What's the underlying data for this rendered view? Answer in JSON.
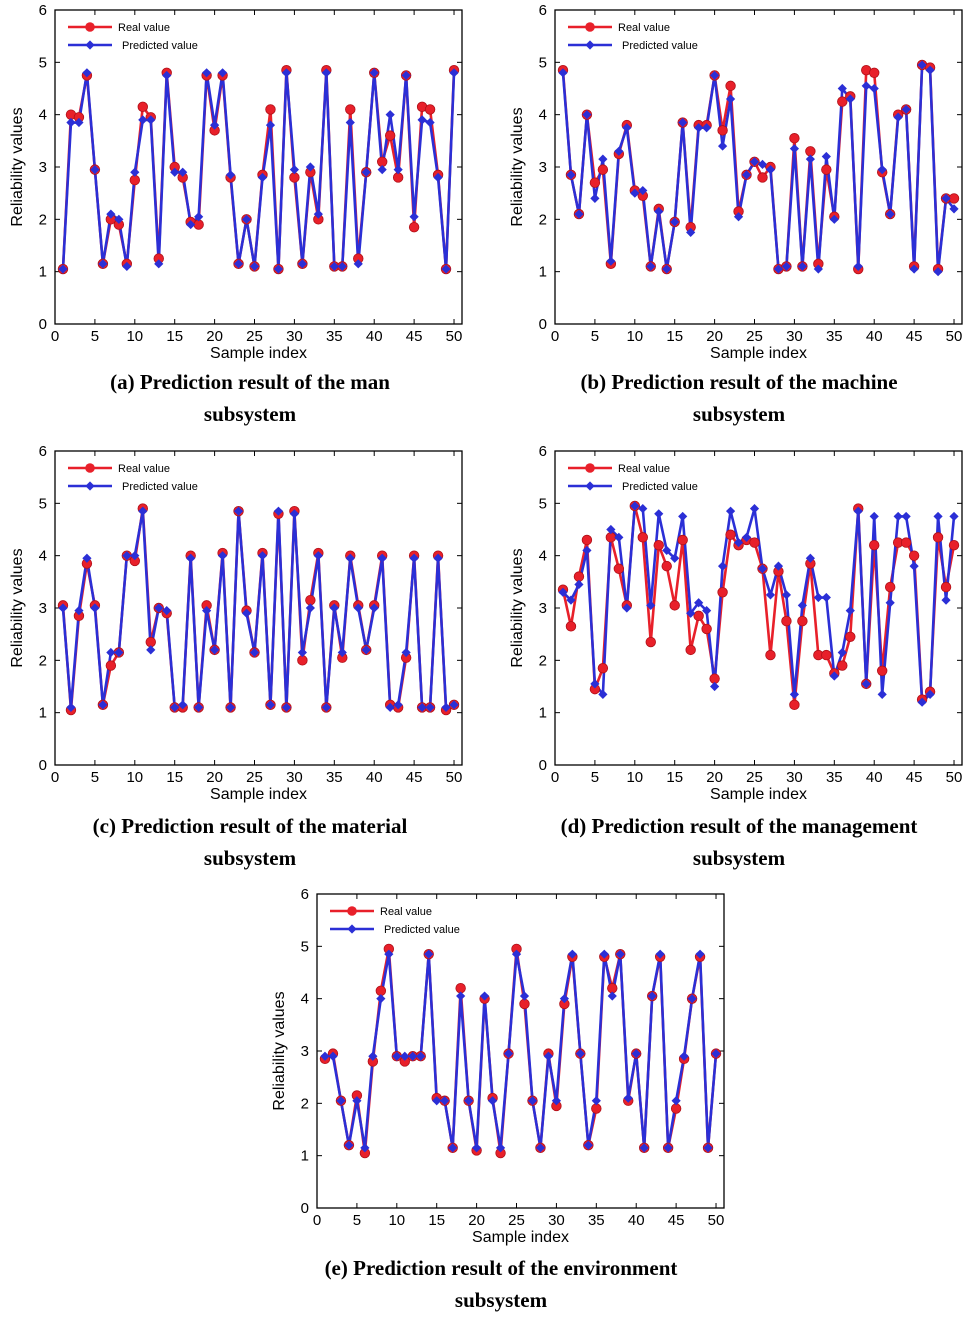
{
  "chart_data": [
    {
      "type": "line",
      "caption_line1": "(a) Prediction result of the man",
      "caption_line2": "subsystem",
      "xlabel": "Sample index",
      "ylabel": "Reliability values",
      "xlim": [
        0,
        51
      ],
      "ylim": [
        0,
        6
      ],
      "xticks": [
        0,
        5,
        10,
        15,
        20,
        25,
        30,
        35,
        40,
        45,
        50
      ],
      "yticks": [
        0,
        1,
        2,
        3,
        4,
        5,
        6
      ],
      "legend_position": "top-left",
      "x": [
        1,
        2,
        3,
        4,
        5,
        6,
        7,
        8,
        9,
        10,
        11,
        12,
        13,
        14,
        15,
        16,
        17,
        18,
        19,
        20,
        21,
        22,
        23,
        24,
        25,
        26,
        27,
        28,
        29,
        30,
        31,
        32,
        33,
        34,
        35,
        36,
        37,
        38,
        39,
        40,
        41,
        42,
        43,
        44,
        45,
        46,
        47,
        48,
        49,
        50
      ],
      "series": [
        {
          "name": "Real value",
          "color": "#e8202a",
          "marker": "circle",
          "values": [
            1.05,
            4.0,
            3.95,
            4.75,
            2.95,
            1.15,
            2.0,
            1.9,
            1.15,
            2.75,
            4.15,
            3.95,
            1.25,
            4.8,
            3.0,
            2.8,
            1.95,
            1.9,
            4.75,
            3.7,
            4.75,
            2.8,
            1.15,
            2.0,
            1.1,
            2.85,
            4.1,
            1.05,
            4.85,
            2.8,
            1.15,
            2.9,
            2.0,
            4.85,
            1.1,
            1.1,
            4.1,
            1.25,
            2.9,
            4.8,
            3.1,
            3.6,
            2.8,
            4.75,
            1.85,
            4.15,
            4.1,
            2.85,
            1.05,
            4.85
          ]
        },
        {
          "name": "Predicted value",
          "color": "#2b2fd6",
          "marker": "diamond",
          "values": [
            1.05,
            3.85,
            3.85,
            4.8,
            2.95,
            1.15,
            2.1,
            2.0,
            1.1,
            2.9,
            3.9,
            3.9,
            1.15,
            4.75,
            2.9,
            2.9,
            1.9,
            2.05,
            4.8,
            3.8,
            4.8,
            2.85,
            1.15,
            2.0,
            1.1,
            2.8,
            3.8,
            1.05,
            4.8,
            2.95,
            1.15,
            3.0,
            2.1,
            4.8,
            1.1,
            1.1,
            3.85,
            1.15,
            2.9,
            4.8,
            2.95,
            4.0,
            2.95,
            4.75,
            2.05,
            3.9,
            3.85,
            2.8,
            1.05,
            4.8
          ]
        }
      ]
    },
    {
      "type": "line",
      "caption_line1": "(b) Prediction result of the machine",
      "caption_line2": "subsystem",
      "xlabel": "Sample index",
      "ylabel": "Reliability values",
      "xlim": [
        0,
        51
      ],
      "ylim": [
        0,
        6
      ],
      "xticks": [
        0,
        5,
        10,
        15,
        20,
        25,
        30,
        35,
        40,
        45,
        50
      ],
      "yticks": [
        0,
        1,
        2,
        3,
        4,
        5,
        6
      ],
      "legend_position": "top-left",
      "x": [
        1,
        2,
        3,
        4,
        5,
        6,
        7,
        8,
        9,
        10,
        11,
        12,
        13,
        14,
        15,
        16,
        17,
        18,
        19,
        20,
        21,
        22,
        23,
        24,
        25,
        26,
        27,
        28,
        29,
        30,
        31,
        32,
        33,
        34,
        35,
        36,
        37,
        38,
        39,
        40,
        41,
        42,
        43,
        44,
        45,
        46,
        47,
        48,
        49,
        50
      ],
      "series": [
        {
          "name": "Real value",
          "color": "#e8202a",
          "marker": "circle",
          "values": [
            4.85,
            2.85,
            2.1,
            4.0,
            2.7,
            2.95,
            1.15,
            3.25,
            3.8,
            2.55,
            2.45,
            1.1,
            2.2,
            1.05,
            1.95,
            3.85,
            1.85,
            3.8,
            3.8,
            4.75,
            3.7,
            4.55,
            2.15,
            2.85,
            3.1,
            2.8,
            3.0,
            1.05,
            1.1,
            3.55,
            1.1,
            3.3,
            1.15,
            2.95,
            2.05,
            4.25,
            4.35,
            1.05,
            4.85,
            4.8,
            2.9,
            2.1,
            4.0,
            4.1,
            1.1,
            4.95,
            4.9,
            1.05,
            2.4,
            2.4
          ]
        },
        {
          "name": "Predicted value",
          "color": "#2b2fd6",
          "marker": "diamond",
          "values": [
            4.8,
            2.85,
            2.1,
            4.0,
            2.4,
            3.15,
            1.2,
            3.3,
            3.75,
            2.5,
            2.55,
            1.1,
            2.15,
            1.05,
            1.95,
            3.85,
            1.75,
            3.75,
            3.75,
            4.75,
            3.4,
            4.3,
            2.05,
            2.85,
            3.1,
            3.05,
            2.95,
            1.05,
            1.1,
            3.35,
            1.1,
            3.15,
            1.05,
            3.2,
            2.0,
            4.5,
            4.3,
            1.1,
            4.55,
            4.5,
            2.95,
            2.1,
            3.95,
            4.1,
            1.05,
            4.95,
            4.85,
            1.0,
            2.4,
            2.2
          ]
        }
      ]
    },
    {
      "type": "line",
      "caption_line1": "(c) Prediction result of the material",
      "caption_line2": "subsystem",
      "xlabel": "Sample index",
      "ylabel": "Reliability values",
      "xlim": [
        0,
        51
      ],
      "ylim": [
        0,
        6
      ],
      "xticks": [
        0,
        5,
        10,
        15,
        20,
        25,
        30,
        35,
        40,
        45,
        50
      ],
      "yticks": [
        0,
        1,
        2,
        3,
        4,
        5,
        6
      ],
      "legend_position": "top-left",
      "x": [
        1,
        2,
        3,
        4,
        5,
        6,
        7,
        8,
        9,
        10,
        11,
        12,
        13,
        14,
        15,
        16,
        17,
        18,
        19,
        20,
        21,
        22,
        23,
        24,
        25,
        26,
        27,
        28,
        29,
        30,
        31,
        32,
        33,
        34,
        35,
        36,
        37,
        38,
        39,
        40,
        41,
        42,
        43,
        44,
        45,
        46,
        47,
        48,
        49,
        50
      ],
      "series": [
        {
          "name": "Real value",
          "color": "#e8202a",
          "marker": "circle",
          "values": [
            3.05,
            1.05,
            2.85,
            3.85,
            3.05,
            1.15,
            1.9,
            2.15,
            4.0,
            3.9,
            4.9,
            2.35,
            3.0,
            2.9,
            1.1,
            1.1,
            4.0,
            1.1,
            3.05,
            2.2,
            4.05,
            1.1,
            4.85,
            2.95,
            2.15,
            4.05,
            1.15,
            4.8,
            1.1,
            4.85,
            2.0,
            3.15,
            4.05,
            1.1,
            3.05,
            2.05,
            4.0,
            3.05,
            2.2,
            3.05,
            4.0,
            1.15,
            1.1,
            2.05,
            4.0,
            1.1,
            1.1,
            4.0,
            1.05,
            1.15
          ]
        },
        {
          "name": "Predicted value",
          "color": "#2b2fd6",
          "marker": "diamond",
          "values": [
            3.0,
            1.1,
            2.95,
            3.95,
            3.0,
            1.15,
            2.15,
            2.15,
            4.0,
            4.0,
            4.85,
            2.2,
            3.0,
            2.95,
            1.1,
            1.15,
            3.95,
            1.1,
            2.95,
            2.2,
            4.0,
            1.1,
            4.85,
            2.9,
            2.15,
            4.0,
            1.15,
            4.85,
            1.1,
            4.8,
            2.15,
            3.0,
            4.0,
            1.1,
            3.0,
            2.15,
            3.95,
            3.0,
            2.2,
            3.0,
            3.95,
            1.1,
            1.15,
            2.15,
            3.95,
            1.1,
            1.1,
            3.95,
            1.1,
            1.15
          ]
        }
      ]
    },
    {
      "type": "line",
      "caption_line1": "(d) Prediction result of the management",
      "caption_line2": "subsystem",
      "xlabel": "Sample index",
      "ylabel": "Reliability values",
      "xlim": [
        0,
        51
      ],
      "ylim": [
        0,
        6
      ],
      "xticks": [
        0,
        5,
        10,
        15,
        20,
        25,
        30,
        35,
        40,
        45,
        50
      ],
      "yticks": [
        0,
        1,
        2,
        3,
        4,
        5,
        6
      ],
      "legend_position": "top-left",
      "x": [
        1,
        2,
        3,
        4,
        5,
        6,
        7,
        8,
        9,
        10,
        11,
        12,
        13,
        14,
        15,
        16,
        17,
        18,
        19,
        20,
        21,
        22,
        23,
        24,
        25,
        26,
        27,
        28,
        29,
        30,
        31,
        32,
        33,
        34,
        35,
        36,
        37,
        38,
        39,
        40,
        41,
        42,
        43,
        44,
        45,
        46,
        47,
        48,
        49,
        50
      ],
      "series": [
        {
          "name": "Real value",
          "color": "#e8202a",
          "marker": "circle",
          "values": [
            3.35,
            2.65,
            3.6,
            4.3,
            1.45,
            1.85,
            4.35,
            3.75,
            3.05,
            4.95,
            4.35,
            2.35,
            4.2,
            3.8,
            3.05,
            4.3,
            2.2,
            2.85,
            2.6,
            1.65,
            3.3,
            4.4,
            4.2,
            4.3,
            4.25,
            3.75,
            2.1,
            3.7,
            2.75,
            1.15,
            2.75,
            3.85,
            2.1,
            2.1,
            1.75,
            1.9,
            2.45,
            4.9,
            1.55,
            4.2,
            1.8,
            3.4,
            4.25,
            4.25,
            4.0,
            1.25,
            1.4,
            4.35,
            3.4,
            4.2
          ]
        },
        {
          "name": "Predicted value",
          "color": "#2b2fd6",
          "marker": "diamond",
          "values": [
            3.3,
            3.15,
            3.45,
            4.1,
            1.55,
            1.35,
            4.5,
            4.35,
            3.0,
            4.95,
            4.9,
            3.05,
            4.8,
            4.1,
            3.95,
            4.75,
            2.9,
            3.1,
            2.95,
            1.5,
            3.8,
            4.85,
            4.25,
            4.35,
            4.9,
            3.75,
            3.25,
            3.8,
            3.25,
            1.35,
            3.05,
            3.95,
            3.2,
            3.2,
            1.7,
            2.15,
            2.95,
            4.85,
            1.55,
            4.75,
            1.35,
            3.1,
            4.75,
            4.75,
            3.8,
            1.2,
            1.35,
            4.75,
            3.15,
            4.75
          ]
        }
      ]
    },
    {
      "type": "line",
      "caption_line1": "(e) Prediction result of the environment",
      "caption_line2": "subsystem",
      "xlabel": "Sample index",
      "ylabel": "Reliability values",
      "xlim": [
        0,
        51
      ],
      "ylim": [
        0,
        6
      ],
      "xticks": [
        0,
        5,
        10,
        15,
        20,
        25,
        30,
        35,
        40,
        45,
        50
      ],
      "yticks": [
        0,
        1,
        2,
        3,
        4,
        5,
        6
      ],
      "legend_position": "top-left",
      "x": [
        1,
        2,
        3,
        4,
        5,
        6,
        7,
        8,
        9,
        10,
        11,
        12,
        13,
        14,
        15,
        16,
        17,
        18,
        19,
        20,
        21,
        22,
        23,
        24,
        25,
        26,
        27,
        28,
        29,
        30,
        31,
        32,
        33,
        34,
        35,
        36,
        37,
        38,
        39,
        40,
        41,
        42,
        43,
        44,
        45,
        46,
        47,
        48,
        49,
        50
      ],
      "series": [
        {
          "name": "Real value",
          "color": "#e8202a",
          "marker": "circle",
          "values": [
            2.85,
            2.95,
            2.05,
            1.2,
            2.15,
            1.05,
            2.8,
            4.15,
            4.95,
            2.9,
            2.8,
            2.9,
            2.9,
            4.85,
            2.1,
            2.05,
            1.15,
            4.2,
            2.05,
            1.1,
            4.0,
            2.1,
            1.05,
            2.95,
            4.95,
            3.9,
            2.05,
            1.15,
            2.95,
            1.95,
            3.9,
            4.8,
            2.95,
            1.2,
            1.9,
            4.8,
            4.2,
            4.85,
            2.05,
            2.95,
            1.15,
            4.05,
            4.8,
            1.15,
            1.9,
            2.85,
            4.0,
            4.8,
            1.15,
            2.95
          ]
        },
        {
          "name": "Predicted value",
          "color": "#2b2fd6",
          "marker": "diamond",
          "values": [
            2.9,
            2.9,
            2.05,
            1.2,
            2.05,
            1.15,
            2.9,
            4.0,
            4.85,
            2.9,
            2.9,
            2.9,
            2.9,
            4.85,
            2.05,
            2.05,
            1.15,
            4.05,
            2.05,
            1.15,
            4.05,
            2.05,
            1.15,
            2.95,
            4.85,
            4.05,
            2.05,
            1.15,
            2.9,
            2.05,
            4.0,
            4.85,
            2.95,
            1.2,
            2.05,
            4.85,
            4.05,
            4.85,
            2.1,
            2.95,
            1.15,
            4.05,
            4.85,
            1.15,
            2.05,
            2.9,
            4.0,
            4.85,
            1.15,
            2.95
          ]
        }
      ]
    }
  ]
}
